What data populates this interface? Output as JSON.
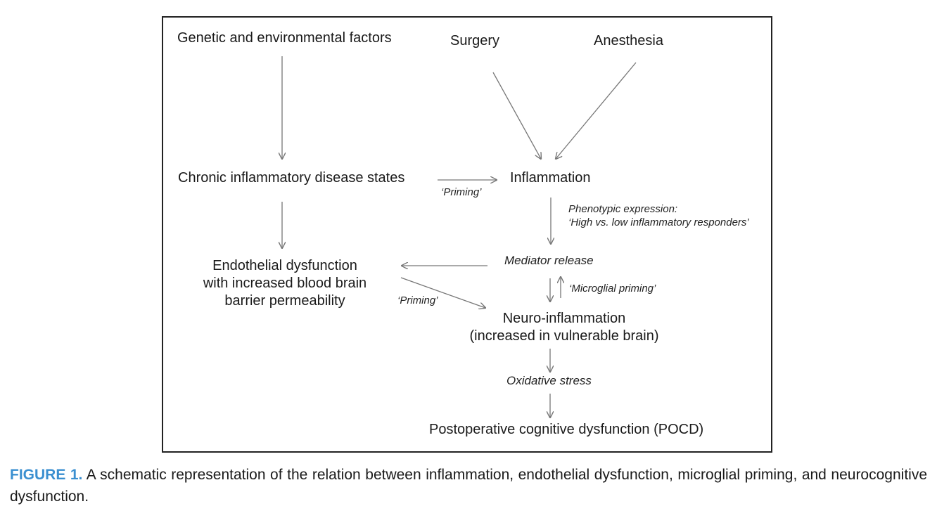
{
  "nodes": {
    "genetic": "Genetic and environmental factors",
    "surgery": "Surgery",
    "anesthesia": "Anesthesia",
    "chronic": "Chronic inflammatory disease states",
    "inflammation": "Inflammation",
    "endothelial": [
      "Endothelial dysfunction",
      "with increased blood brain",
      "barrier permeability"
    ],
    "mediator": "Mediator release",
    "neuro": [
      "Neuro-inflammation",
      "(increased in vulnerable brain)"
    ],
    "oxidative": "Oxidative stress",
    "pocd": "Postoperative cognitive dysfunction (POCD)"
  },
  "labels": {
    "priming_top": "‘Priming’",
    "priming_bottom": "‘Priming’",
    "phenotypic": [
      "Phenotypic expression:",
      "‘High vs. low inflammatory responders’"
    ],
    "microglial": "‘Microglial priming’"
  },
  "caption": {
    "label": "FIGURE 1.",
    "text": " A schematic representation of the relation between inflammation, endothelial dysfunction, microglial priming, and neurocognitive dysfunction."
  }
}
